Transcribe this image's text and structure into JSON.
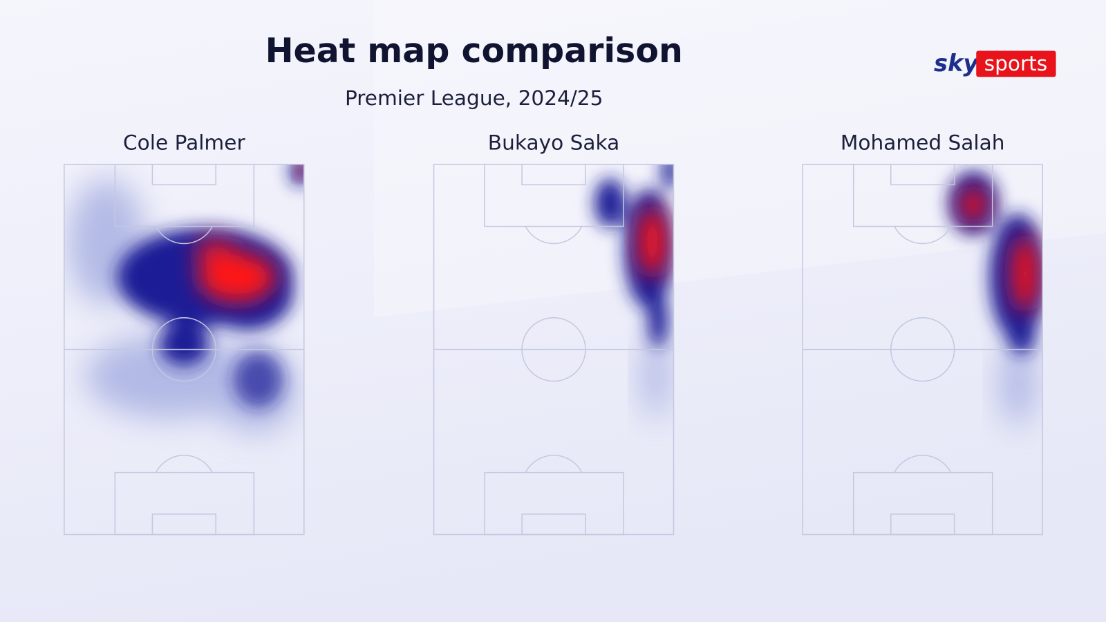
{
  "header": {
    "title": "Heat map comparison",
    "subtitle": "Premier League, 2024/25"
  },
  "logo": {
    "brand": "sky",
    "product": "sports"
  },
  "panels": [
    {
      "player": "Cole Palmer"
    },
    {
      "player": "Bukayo Saka"
    },
    {
      "player": "Mohamed Salah"
    }
  ]
}
